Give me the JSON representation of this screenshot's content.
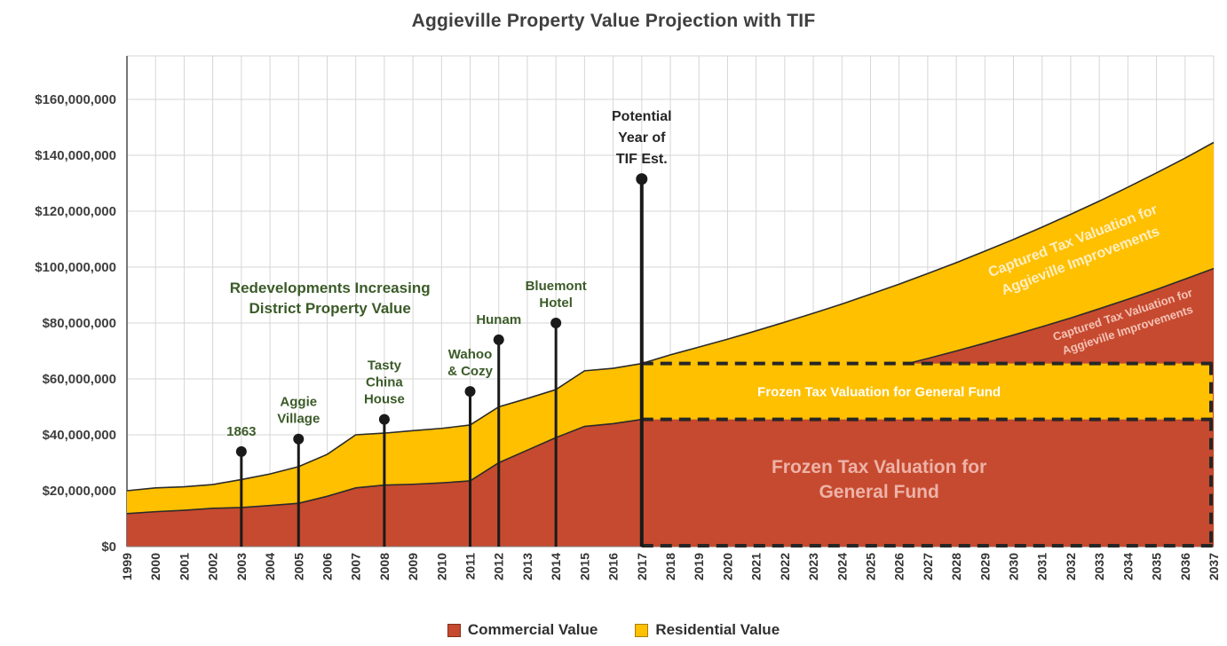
{
  "title": "Aggieville Property Value Projection with TIF",
  "legend": [
    {
      "label": "Commercial Value",
      "color_key": "commercial"
    },
    {
      "label": "Residential Value",
      "color_key": "residential"
    }
  ],
  "colors": {
    "commercial": "#C64A2F",
    "residential": "#FFC000",
    "area_outline": "#2B2B2B",
    "grid": "#D6D6D6",
    "axis_line": "#4A4A4A",
    "axis_text": "#3F3F3F",
    "annotation_green": "#3B5B28",
    "annotation_black": "#262626",
    "lollipop": "#1A1A1A",
    "dashed_line": "#262626",
    "frozen_band_text": "#FFFFFF",
    "frozen_main_text": "#EDB3A8",
    "captured_yellow_text": "#FFEFC4",
    "captured_red_text": "#F4C2B6"
  },
  "chart_data": {
    "type": "area",
    "stacked": true,
    "title": "Aggieville Property Value Projection with TIF",
    "xlabel": "",
    "ylabel": "",
    "ylim": [
      0,
      175000000
    ],
    "ytick_step": 20000000,
    "ytick_labels": [
      "$0",
      "$20,000,000",
      "$40,000,000",
      "$60,000,000",
      "$80,000,000",
      "$100,000,000",
      "$120,000,000",
      "$140,000,000",
      "$160,000,000"
    ],
    "grid": true,
    "legend_position": "bottom",
    "x": [
      1999,
      2000,
      2001,
      2002,
      2003,
      2004,
      2005,
      2006,
      2007,
      2008,
      2009,
      2010,
      2011,
      2012,
      2013,
      2014,
      2015,
      2016,
      2017,
      2018,
      2019,
      2020,
      2021,
      2022,
      2023,
      2024,
      2025,
      2026,
      2027,
      2028,
      2029,
      2030,
      2031,
      2032,
      2033,
      2034,
      2035,
      2036,
      2037
    ],
    "series": [
      {
        "name": "Commercial Value",
        "values": [
          11800000,
          12500000,
          13000000,
          13700000,
          14000000,
          14700000,
          15500000,
          18000000,
          21000000,
          22000000,
          22300000,
          22800000,
          23500000,
          30000000,
          34500000,
          39000000,
          43000000,
          44000000,
          45500000,
          47300000,
          49200000,
          51200000,
          53200000,
          55300000,
          57500000,
          59800000,
          62200000,
          64700000,
          67300000,
          70000000,
          72800000,
          75700000,
          78700000,
          81800000,
          85100000,
          88500000,
          92000000,
          95700000,
          99500000
        ]
      },
      {
        "name": "Residential Value",
        "values": [
          8200000,
          8500000,
          8400000,
          8500000,
          10000000,
          11300000,
          13100000,
          15000000,
          19000000,
          18600000,
          19200000,
          19500000,
          20000000,
          20000000,
          18500000,
          17200000,
          19900000,
          19800000,
          20000000,
          21300000,
          22200000,
          23000000,
          24000000,
          25000000,
          26000000,
          27000000,
          28100000,
          29200000,
          30400000,
          31600000,
          32900000,
          34200000,
          35600000,
          37100000,
          38500000,
          40100000,
          41700000,
          43300000,
          45100000
        ]
      }
    ],
    "annotations": [
      {
        "year": 2003,
        "lines": [
          "1863"
        ],
        "dot_value": 34000000,
        "style": "green"
      },
      {
        "year": 2005,
        "lines": [
          "Aggie",
          "Village"
        ],
        "dot_value": 38500000,
        "style": "green"
      },
      {
        "year": 2008,
        "lines": [
          "Tasty",
          "China",
          "House"
        ],
        "dot_value": 45500000,
        "style": "green"
      },
      {
        "year": 2011,
        "lines": [
          "Wahoo",
          "& Cozy"
        ],
        "dot_value": 55500000,
        "style": "green"
      },
      {
        "year": 2012,
        "lines": [
          "Hunam"
        ],
        "dot_value": 74000000,
        "style": "green"
      },
      {
        "year": 2014,
        "lines": [
          "Bluemont",
          "Hotel"
        ],
        "dot_value": 80000000,
        "style": "green"
      },
      {
        "year": 2017,
        "lines": [
          "Potential",
          "Year of",
          "TIF Est."
        ],
        "dot_value": 131500000,
        "style": "black"
      }
    ],
    "note": {
      "lines": [
        "Redevelopments Increasing",
        "District Property Value"
      ],
      "center_year": 2006.1,
      "center_value": 89000000
    },
    "frozen_box": {
      "start_year": 2017,
      "end_year": 2037,
      "commercial_frozen_value": 45500000,
      "total_frozen_value": 65500000
    },
    "region_labels": [
      {
        "lines": [
          "Captured Tax Valuation for",
          "Aggieville Improvements"
        ],
        "center_year": 2032.2,
        "center_value": 106000000,
        "rotation": -21,
        "size": 16,
        "line_height": 24,
        "color_key": "captured_yellow_text"
      },
      {
        "lines": [
          "Captured Tax Valuation for",
          "Aggieville Improvements"
        ],
        "center_year": 2033.9,
        "center_value": 80300000,
        "rotation": -18,
        "size": 13,
        "line_height": 18,
        "color_key": "captured_red_text"
      },
      {
        "lines": [
          "Frozen Tax Valuation for General Fund"
        ],
        "center_year": 2025.3,
        "center_value": 55500000,
        "rotation": 0,
        "size": 15,
        "line_height": 18,
        "color_key": "frozen_band_text"
      },
      {
        "lines": [
          "Frozen Tax Valuation for",
          "General Fund"
        ],
        "center_year": 2025.3,
        "center_value": 24300000,
        "rotation": 0,
        "size": 21,
        "line_height": 28,
        "color_key": "frozen_main_text"
      }
    ]
  }
}
